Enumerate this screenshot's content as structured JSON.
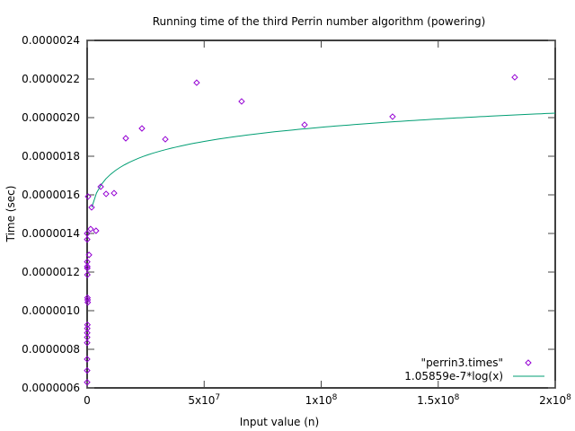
{
  "chart_data": {
    "type": "scatter",
    "title": "Running time of the third Perrin number algorithm (powering)",
    "xlabel": "Input value (n)",
    "ylabel": "Time (sec)",
    "xlim": [
      0,
      200000000
    ],
    "ylim": [
      6e-07,
      2.4e-06
    ],
    "grid": false,
    "legend_position": "bottom-right",
    "x_ticks": [
      {
        "value": 0,
        "label": "0"
      },
      {
        "value": 50000000,
        "label": "5x10",
        "exp": "7"
      },
      {
        "value": 100000000,
        "label": "1x10",
        "exp": "8"
      },
      {
        "value": 150000000,
        "label": "1.5x10",
        "exp": "8"
      },
      {
        "value": 200000000,
        "label": "2x10",
        "exp": "8"
      }
    ],
    "y_ticks": [
      {
        "value": 6e-07,
        "label": "0.0000006"
      },
      {
        "value": 8e-07,
        "label": "0.0000008"
      },
      {
        "value": 1e-06,
        "label": "0.0000010"
      },
      {
        "value": 1.2e-06,
        "label": "0.0000012"
      },
      {
        "value": 1.4e-06,
        "label": "0.0000014"
      },
      {
        "value": 1.6e-06,
        "label": "0.0000016"
      },
      {
        "value": 1.8e-06,
        "label": "0.0000018"
      },
      {
        "value": 2e-06,
        "label": "0.0000020"
      },
      {
        "value": 2.2e-06,
        "label": "0.0000022"
      },
      {
        "value": 2.4e-06,
        "label": "0.0000024"
      }
    ],
    "series": [
      {
        "name": "\"perrin3.times\"",
        "kind": "points",
        "color": "#9400d3",
        "x": [
          1000,
          2000,
          4000,
          8000,
          16000,
          32000,
          64000,
          128000,
          256000,
          200000,
          150000,
          100000,
          80000,
          60000,
          40000,
          20000,
          10000,
          400000,
          800000,
          1500000,
          1900000,
          3800000,
          5800000,
          8100000,
          11500000,
          16500000,
          23400000,
          33400000,
          46800000,
          66000000,
          92900000,
          130500000,
          182700000
        ],
        "y": [
          6.29e-07,
          6.9e-07,
          7.49e-07,
          8.34e-07,
          8.62e-07,
          8.85e-07,
          9.08e-07,
          9.27e-07,
          1.043e-06,
          1.056e-06,
          1.067e-06,
          1.186e-06,
          1.22e-06,
          1.229e-06,
          1.253e-06,
          1.369e-06,
          1.4e-06,
          1.591e-06,
          1.289e-06,
          1.423e-06,
          1.535e-06,
          1.414e-06,
          1.642e-06,
          1.605e-06,
          1.609e-06,
          1.893e-06,
          1.944e-06,
          1.888e-06,
          2.181e-06,
          2.084e-06,
          1.963e-06,
          2.005e-06,
          2.209e-06
        ]
      },
      {
        "name": "1.05859e-7*log(x)",
        "kind": "line",
        "color": "#009e73",
        "coefficient": 1.05859e-07,
        "samples": 100
      }
    ]
  }
}
